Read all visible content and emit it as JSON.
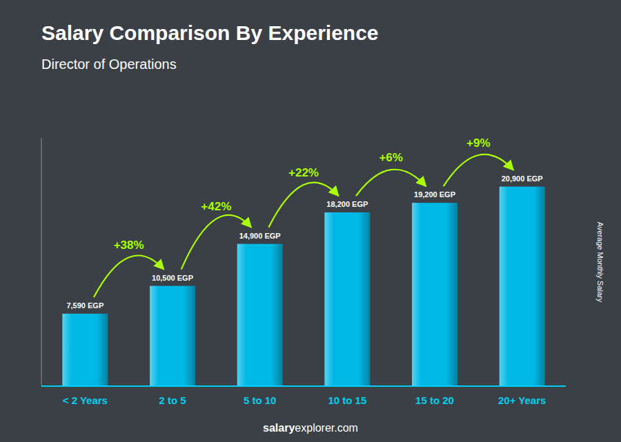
{
  "chart_data": {
    "type": "bar",
    "title": "Salary Comparison By Experience",
    "subtitle": "Director of Operations",
    "ylabel": "Average Monthly Salary",
    "categories": [
      "< 2 Years",
      "2 to 5",
      "5 to 10",
      "10 to 15",
      "15 to 20",
      "20+ Years"
    ],
    "values": [
      7590,
      10500,
      14900,
      18200,
      19200,
      20900
    ],
    "value_labels": [
      "7,590 EGP",
      "10,500 EGP",
      "14,900 EGP",
      "18,200 EGP",
      "19,200 EGP",
      "20,900 EGP"
    ],
    "data_labels": true,
    "annotations": [
      "+38%",
      "+42%",
      "+22%",
      "+6%",
      "+9%"
    ],
    "watermark": [
      "salary",
      "explorer.com"
    ],
    "color": "#00b8e6",
    "ylim": [
      0,
      26000
    ],
    "tick_labels": "x",
    "grid": false
  }
}
